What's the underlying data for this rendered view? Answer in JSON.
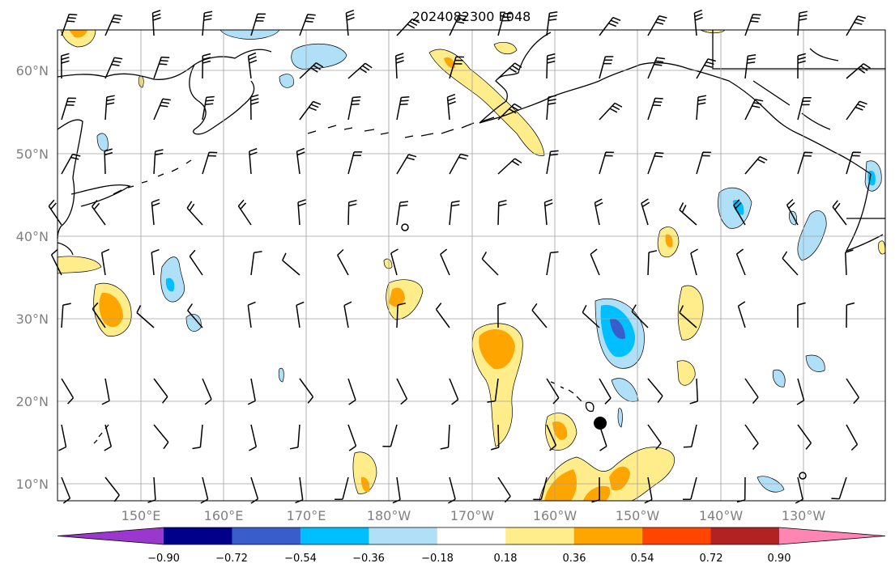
{
  "title": "2024082300 F048",
  "map": {
    "lat_labels": [
      "60°N",
      "50°N",
      "40°N",
      "30°N",
      "20°N",
      "10°N"
    ],
    "lon_labels": [
      "150°E",
      "160°E",
      "170°E",
      "180°W",
      "170°W",
      "160°W",
      "150°W",
      "140°W",
      "130°W"
    ]
  },
  "colorbar": {
    "ticks": [
      "−0.90",
      "−0.72",
      "−0.54",
      "−0.36",
      "−0.18",
      "0.18",
      "0.36",
      "0.54",
      "0.72",
      "0.90"
    ],
    "colors": [
      "#9a37cc",
      "#00008b",
      "#3a5dcc",
      "#00bfff",
      "#b0e0f8",
      "#ffffff",
      "#ffec8b",
      "#ffa500",
      "#ff4500",
      "#b22222",
      "#ff86b2"
    ]
  }
}
